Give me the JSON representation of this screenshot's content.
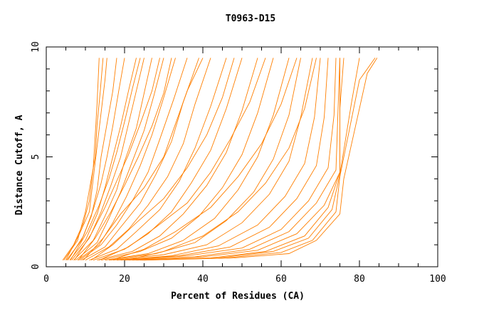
{
  "chart_data": {
    "type": "line",
    "title": "T0963-D15",
    "xlabel": "Percent of Residues (CA)",
    "ylabel": "Distance Cutoff, A",
    "xlim": [
      0,
      100
    ],
    "ylim": [
      0,
      10
    ],
    "x_ticks": [
      0,
      20,
      40,
      60,
      80,
      100
    ],
    "y_ticks": [
      0,
      5,
      10
    ],
    "grid": false,
    "legend": "none",
    "series_color": "#ff7f00",
    "series": [
      {
        "x": [
          4.2,
          7,
          9.5,
          11,
          12,
          12.5,
          13,
          13.5
        ],
        "y": [
          0.3,
          1,
          2,
          3,
          4.5,
          6,
          7.5,
          9.5
        ]
      },
      {
        "x": [
          4.5,
          8,
          10,
          11.5,
          12.5,
          13,
          13.8,
          14.5
        ],
        "y": [
          0.3,
          1.2,
          2.5,
          4,
          5,
          6.5,
          8,
          9.5
        ]
      },
      {
        "x": [
          5,
          8.5,
          11,
          12,
          13,
          14,
          15,
          15.5
        ],
        "y": [
          0.3,
          1.5,
          2.5,
          4,
          5.5,
          7,
          8.5,
          9.5
        ]
      },
      {
        "x": [
          5.2,
          9,
          11.5,
          13,
          14,
          15.5,
          17,
          18
        ],
        "y": [
          0.3,
          1.2,
          2.3,
          3.5,
          5,
          6.5,
          8,
          9.5
        ]
      },
      {
        "x": [
          5.5,
          9.5,
          12,
          14,
          15.5,
          17,
          18.5,
          20
        ],
        "y": [
          0.3,
          1.4,
          2.6,
          3.8,
          5,
          6.4,
          8,
          9.5
        ]
      },
      {
        "x": [
          6,
          10,
          13,
          15,
          17,
          19,
          21,
          23
        ],
        "y": [
          0.3,
          1.2,
          2.4,
          3.6,
          5,
          6.4,
          8,
          9.5
        ]
      },
      {
        "x": [
          6.5,
          11,
          14,
          16.5,
          19,
          21,
          23,
          25
        ],
        "y": [
          0.3,
          1.3,
          2.5,
          3.7,
          5,
          6.5,
          8,
          9.5
        ]
      },
      {
        "x": [
          7,
          12,
          15,
          18,
          20,
          23,
          25,
          27
        ],
        "y": [
          0.3,
          1.2,
          2.3,
          3.5,
          4.8,
          6.3,
          7.9,
          9.5
        ]
      },
      {
        "x": [
          7.5,
          13,
          16,
          19,
          22,
          25,
          27.5,
          30
        ],
        "y": [
          0.3,
          1.1,
          2.2,
          3.4,
          4.8,
          6.2,
          7.8,
          9.5
        ]
      },
      {
        "x": [
          8,
          13.5,
          17,
          20.5,
          24,
          27,
          30,
          33
        ],
        "y": [
          0.3,
          1,
          2,
          3.2,
          4.6,
          6,
          7.7,
          9.5
        ]
      },
      {
        "x": [
          8.5,
          14,
          18,
          22,
          26,
          29,
          32.5,
          36
        ],
        "y": [
          0.3,
          1,
          1.9,
          3,
          4.3,
          5.8,
          7.6,
          9.5
        ]
      },
      {
        "x": [
          9,
          15,
          19,
          24,
          28,
          32,
          35,
          39
        ],
        "y": [
          0.3,
          0.9,
          1.8,
          2.9,
          4.2,
          5.7,
          7.5,
          9.5
        ]
      },
      {
        "x": [
          10,
          16,
          21,
          26,
          31,
          35,
          38,
          42
        ],
        "y": [
          0.3,
          0.9,
          1.7,
          2.8,
          4.1,
          5.6,
          7.4,
          9.5
        ]
      },
      {
        "x": [
          11,
          18,
          23,
          29,
          34,
          38,
          42,
          46
        ],
        "y": [
          0.3,
          0.8,
          1.6,
          2.6,
          3.9,
          5.4,
          7.3,
          9.5
        ]
      },
      {
        "x": [
          12,
          20,
          26,
          32,
          37,
          42,
          46,
          50
        ],
        "y": [
          0.3,
          0.8,
          1.5,
          2.5,
          3.8,
          5.3,
          7.2,
          9.5
        ]
      },
      {
        "x": [
          13,
          22,
          29,
          35,
          41,
          46,
          50,
          54
        ],
        "y": [
          0.3,
          0.7,
          1.4,
          2.4,
          3.7,
          5.2,
          7.1,
          9.5
        ]
      },
      {
        "x": [
          14,
          24,
          32,
          39,
          45,
          50,
          54,
          58
        ],
        "y": [
          0.3,
          0.7,
          1.3,
          2.3,
          3.6,
          5.1,
          7,
          9.5
        ]
      },
      {
        "x": [
          15,
          26,
          35,
          43,
          49,
          54,
          58,
          62
        ],
        "y": [
          0.3,
          0.6,
          1.2,
          2.2,
          3.5,
          5,
          6.9,
          9.5
        ]
      },
      {
        "x": [
          16,
          28,
          38,
          46,
          53,
          58,
          62,
          65
        ],
        "y": [
          0.3,
          0.6,
          1.1,
          2.1,
          3.4,
          4.9,
          6.9,
          9.5
        ]
      },
      {
        "x": [
          17,
          30,
          41,
          50,
          57,
          62,
          65,
          68
        ],
        "y": [
          0.3,
          0.55,
          1,
          2,
          3.3,
          4.8,
          6.8,
          9.5
        ]
      },
      {
        "x": [
          18,
          32,
          44,
          54,
          61,
          66,
          68.5,
          70
        ],
        "y": [
          0.3,
          0.5,
          0.95,
          1.9,
          3.2,
          4.7,
          6.8,
          9.5
        ]
      },
      {
        "x": [
          19,
          34,
          47,
          57,
          64,
          69,
          71,
          72
        ],
        "y": [
          0.3,
          0.5,
          0.9,
          1.8,
          3.1,
          4.6,
          6.8,
          9.5
        ]
      },
      {
        "x": [
          20,
          36,
          50,
          60,
          67,
          72,
          73.5,
          74
        ],
        "y": [
          0.3,
          0.5,
          0.85,
          1.7,
          3,
          4.5,
          6.9,
          9.5
        ]
      },
      {
        "x": [
          21,
          38,
          52,
          62,
          69,
          74,
          74.5,
          75
        ],
        "y": [
          0.3,
          0.45,
          0.8,
          1.6,
          2.9,
          4.4,
          7,
          9.5
        ]
      },
      {
        "x": [
          22,
          40,
          54,
          64,
          71,
          75,
          75,
          75
        ],
        "y": [
          0.3,
          0.45,
          0.75,
          1.5,
          2.8,
          4.3,
          7,
          9.5
        ]
      },
      {
        "x": [
          23,
          42,
          56,
          66,
          72,
          75,
          75,
          76
        ],
        "y": [
          0.3,
          0.4,
          0.7,
          1.4,
          2.7,
          4.3,
          7.2,
          9.5
        ]
      },
      {
        "x": [
          24,
          44,
          58,
          67,
          73,
          75,
          78,
          80
        ],
        "y": [
          0.3,
          0.4,
          0.7,
          1.3,
          2.6,
          4.2,
          7.5,
          9.5
        ]
      },
      {
        "x": [
          24.5,
          46,
          60,
          68,
          74,
          75,
          80,
          84
        ],
        "y": [
          0.3,
          0.4,
          0.65,
          1.2,
          2.5,
          4.1,
          8.5,
          9.5
        ]
      },
      {
        "x": [
          25,
          48,
          62,
          69,
          75,
          76,
          82,
          84.5
        ],
        "y": [
          0.3,
          0.4,
          0.6,
          1.2,
          2.4,
          4,
          8.8,
          9.5
        ]
      },
      {
        "x": [
          9.5,
          14.5,
          19,
          25,
          30,
          33,
          36,
          40
        ],
        "y": [
          0.3,
          1.3,
          2.4,
          3.6,
          5,
          6.5,
          8,
          9.5
        ]
      },
      {
        "x": [
          11.5,
          17,
          23,
          30,
          36,
          41,
          45,
          48
        ],
        "y": [
          0.3,
          1,
          2,
          3.1,
          4.5,
          6,
          7.7,
          9.5
        ]
      },
      {
        "x": [
          13.5,
          21,
          28,
          36,
          42,
          47,
          52,
          56
        ],
        "y": [
          0.3,
          0.9,
          1.8,
          2.9,
          4.3,
          5.8,
          7.5,
          9.5
        ]
      },
      {
        "x": [
          16.5,
          25,
          33,
          42,
          49,
          55,
          60,
          64
        ],
        "y": [
          0.3,
          0.8,
          1.6,
          2.7,
          4.1,
          5.6,
          7.4,
          9.5
        ]
      },
      {
        "x": [
          20.5,
          30,
          40,
          49,
          56,
          62,
          66,
          69
        ],
        "y": [
          0.3,
          0.7,
          1.4,
          2.5,
          3.8,
          5.4,
          7.2,
          9.5
        ]
      },
      {
        "x": [
          6.2,
          10.5,
          13.5,
          16,
          18,
          20,
          22,
          24
        ],
        "y": [
          0.3,
          1.6,
          2.8,
          4,
          5.2,
          6.6,
          8.1,
          9.5
        ]
      },
      {
        "x": [
          7.2,
          11.5,
          15,
          18,
          21,
          24,
          27,
          29
        ],
        "y": [
          0.3,
          1.5,
          2.7,
          3.9,
          5.1,
          6.5,
          8,
          9.5
        ]
      },
      {
        "x": [
          8.2,
          12.5,
          16.5,
          20,
          23.5,
          27,
          30,
          32
        ],
        "y": [
          0.3,
          1.3,
          2.5,
          3.7,
          5,
          6.4,
          7.9,
          9.5
        ]
      }
    ]
  }
}
